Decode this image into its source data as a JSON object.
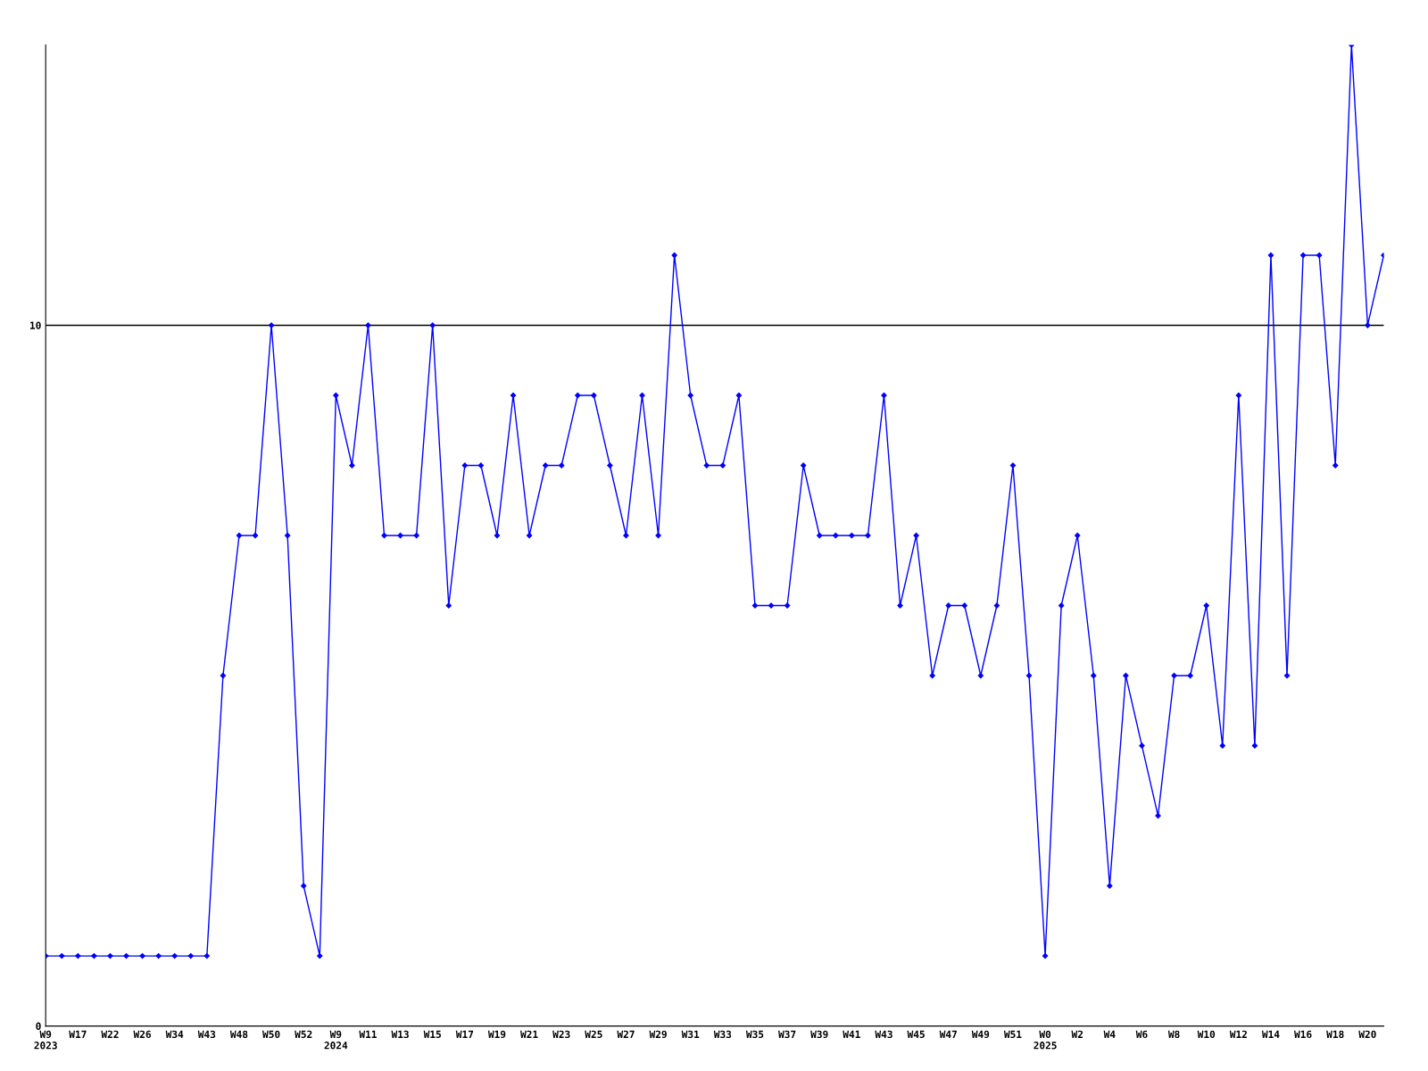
{
  "chart_data": {
    "type": "line",
    "categories": [
      "W9\n2023",
      null,
      "W17",
      null,
      "W22",
      null,
      "W26",
      null,
      "W34",
      null,
      "W43",
      null,
      "W48",
      null,
      "W50",
      null,
      "W52",
      null,
      "W9\n2024",
      null,
      "W11",
      null,
      "W13",
      null,
      "W15",
      null,
      "W17",
      null,
      "W19",
      null,
      "W21",
      null,
      "W23",
      null,
      "W25",
      null,
      "W27",
      null,
      "W29",
      null,
      "W31",
      null,
      "W33",
      null,
      "W35",
      null,
      "W37",
      null,
      "W39",
      null,
      "W41",
      null,
      "W43",
      null,
      "W45",
      null,
      "W47",
      null,
      "W49",
      null,
      "W51",
      null,
      "W0\n2025",
      null,
      "W2",
      null,
      "W4",
      null,
      "W6",
      null,
      "W8",
      null,
      "W10",
      null,
      "W12",
      null,
      "W14",
      null,
      "W16",
      null,
      "W18",
      null,
      "W20",
      null
    ],
    "series": [
      {
        "color": "#0000ff",
        "values": [
          1,
          1,
          1,
          1,
          1,
          1,
          1,
          1,
          1,
          1,
          1,
          5,
          7,
          7,
          10,
          7,
          2,
          1,
          9,
          8,
          10,
          7,
          7,
          7,
          10,
          6,
          8,
          8,
          7,
          9,
          7,
          8,
          8,
          9,
          9,
          8,
          7,
          9,
          7,
          11,
          9,
          8,
          8,
          9,
          6,
          6,
          6,
          8,
          7,
          7,
          7,
          7,
          9,
          6,
          7,
          5,
          6,
          6,
          5,
          6,
          8,
          5,
          1,
          6,
          7,
          5,
          2,
          5,
          4,
          3,
          5,
          5,
          6,
          4,
          9,
          4,
          11,
          5,
          11,
          11,
          8,
          14,
          10,
          11
        ]
      }
    ],
    "ylim": [
      0,
      14
    ],
    "yticks": [
      0,
      10
    ],
    "grid": "y",
    "marker": "diamond",
    "line_style": "solid"
  }
}
